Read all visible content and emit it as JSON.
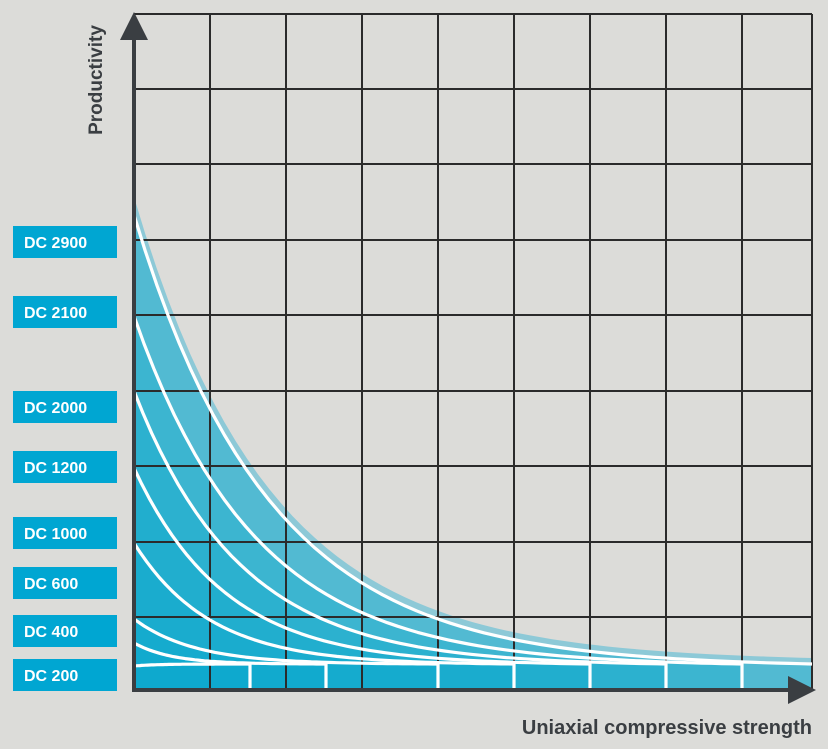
{
  "chart_data": {
    "type": "area",
    "title": "",
    "xlabel": "Uniaxial compressive strength",
    "ylabel": "Productivity",
    "grid": true,
    "legend": "left",
    "colors": {
      "background": "#dcdcd9",
      "grid": "#2b2b2b",
      "axis": "#3a3e42",
      "label_box": "#00a6d2",
      "label_text": "#ffffff",
      "curve": "#ffffff",
      "band": "#0aa8cc",
      "band_outer": "#7fc5d6"
    },
    "series": [
      {
        "name": "DC 200"
      },
      {
        "name": "DC 400"
      },
      {
        "name": "DC 600"
      },
      {
        "name": "DC 1000"
      },
      {
        "name": "DC 1200"
      },
      {
        "name": "DC 2000"
      },
      {
        "name": "DC 2100"
      },
      {
        "name": "DC 2900"
      }
    ]
  }
}
